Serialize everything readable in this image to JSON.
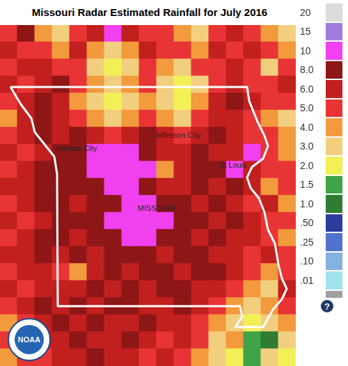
{
  "chart_data": {
    "type": "heatmap",
    "title": "Missouri Radar Estimated Rainfall for July 2016",
    "xlim": [
      -0.5,
      16.5
    ],
    "ylim": [
      -0.5,
      19.5
    ],
    "tick_labels": false,
    "cells": [
      [
        5.5,
        9,
        4.5,
        3.5,
        5.5,
        7,
        12,
        7,
        5.5,
        5.5,
        4.5,
        3.5,
        5.5,
        7,
        5.5,
        4.5,
        3.5
      ],
      [
        7,
        5.5,
        5.5,
        4.5,
        7,
        4.5,
        3.5,
        4.5,
        7,
        5.5,
        5.5,
        4.5,
        7,
        5.5,
        7,
        5.5,
        4.5
      ],
      [
        5.5,
        7,
        7,
        5.5,
        5.5,
        3.5,
        2.5,
        3.5,
        5.5,
        4.5,
        3.5,
        5.5,
        5.5,
        7,
        5.5,
        3.5,
        5.5
      ],
      [
        7,
        5.5,
        7,
        9,
        5.5,
        4.5,
        3.5,
        4.5,
        5.5,
        3.5,
        2.5,
        3.5,
        5.5,
        7,
        5.5,
        5.5,
        7
      ],
      [
        5.5,
        7,
        9,
        7,
        4.5,
        3.5,
        2.5,
        3.5,
        4.5,
        3.5,
        2.5,
        4.5,
        7,
        9,
        7,
        5.5,
        5.5
      ],
      [
        4.5,
        7,
        9,
        7,
        5.5,
        4.5,
        3.5,
        4.5,
        5.5,
        4.5,
        3.5,
        5.5,
        7,
        7,
        5.5,
        4.5,
        3.5
      ],
      [
        5.5,
        7,
        9,
        7,
        9,
        7,
        5.5,
        7,
        9,
        7,
        5.5,
        7,
        9,
        7,
        5.5,
        5.5,
        4.5
      ],
      [
        7,
        5.5,
        7,
        9,
        9,
        12,
        12,
        12,
        9,
        7,
        7,
        9,
        7,
        7,
        12,
        5.5,
        4.5
      ],
      [
        5.5,
        7,
        9,
        9,
        9,
        12,
        12,
        12,
        12,
        4.5,
        7,
        9,
        9,
        12,
        7,
        5.5,
        5.5
      ],
      [
        7,
        7,
        9,
        9,
        9,
        9,
        12,
        12,
        9,
        7,
        7,
        9,
        7,
        9,
        7,
        4.5,
        5.5
      ],
      [
        5.5,
        7,
        9,
        9,
        7,
        9,
        9,
        12,
        12,
        9,
        9,
        7,
        9,
        7,
        5.5,
        7,
        4.5
      ],
      [
        7,
        5.5,
        7,
        9,
        9,
        9,
        12,
        12,
        12,
        12,
        9,
        9,
        7,
        9,
        7,
        5.5,
        5.5
      ],
      [
        5.5,
        7,
        9,
        9,
        7,
        9,
        9,
        12,
        12,
        9,
        9,
        7,
        9,
        7,
        7,
        5.5,
        4.5
      ],
      [
        7,
        7,
        9,
        7,
        9,
        7,
        9,
        9,
        9,
        7,
        9,
        9,
        7,
        7,
        5.5,
        7,
        5.5
      ],
      [
        5.5,
        7,
        7,
        5.5,
        4.5,
        7,
        9,
        7,
        9,
        9,
        7,
        9,
        9,
        7,
        5.5,
        4.5,
        5.5
      ],
      [
        7,
        5.5,
        7,
        7,
        7,
        9,
        7,
        9,
        7,
        9,
        9,
        7,
        7,
        5.5,
        4.5,
        3.5,
        7
      ],
      [
        5.5,
        7,
        9,
        7,
        9,
        7,
        9,
        9,
        7,
        7,
        9,
        7,
        5.5,
        4.5,
        3.5,
        4.5,
        5.5
      ],
      [
        4.5,
        5.5,
        7,
        9,
        7,
        9,
        7,
        7,
        9,
        7,
        7,
        5.5,
        4.5,
        3.5,
        2.5,
        3.5,
        4.5
      ],
      [
        5.5,
        4.5,
        7,
        7,
        9,
        7,
        7,
        9,
        7,
        5.5,
        7,
        5.5,
        3.5,
        4.5,
        1.7,
        1.2,
        3.5
      ],
      [
        4.5,
        5.5,
        5.5,
        7,
        7,
        9,
        7,
        7,
        5.5,
        7,
        5.5,
        4.5,
        3.5,
        2.5,
        1.7,
        3.5,
        2.5
      ]
    ],
    "colorbar": {
      "ticks": [
        {
          "value": 0.01,
          "label": ".01"
        },
        {
          "value": 0.1,
          "label": ".10"
        },
        {
          "value": 0.25,
          "label": ".25"
        },
        {
          "value": 0.5,
          "label": ".50"
        },
        {
          "value": 1,
          "label": "1.0"
        },
        1.5,
        {
          "value": 2,
          "label": "2.0"
        },
        {
          "value": 3,
          "label": "3.0"
        },
        {
          "value": 4,
          "label": "4.0"
        },
        {
          "value": 5,
          "label": "5.0"
        },
        {
          "value": 6,
          "label": "6.0"
        },
        {
          "value": 8,
          "label": "8.0"
        },
        10,
        15,
        20
      ],
      "colors": [
        "#a0a0a0",
        "#9fe3ef",
        "#83b1e0",
        "#4f73cf",
        "#2b3b9e",
        "#2e7d32",
        "#3fa447",
        "#f3f056",
        "#f2cf7e",
        "#f29a3c",
        "#e83434",
        "#c21f1f",
        "#8e1616",
        "#f040f0",
        "#a07cdf",
        "#dcdcdc"
      ]
    },
    "annotations": [
      {
        "text": "Kansas City",
        "x": 3.9,
        "y": 6.77
      },
      {
        "text": "Jefferson City",
        "x": 9.7,
        "y": 6.0
      },
      {
        "text": "St Louis",
        "x": 12.9,
        "y": 7.74
      },
      {
        "text": "MISSOURI",
        "x": 8.5,
        "y": 10.28
      }
    ],
    "logo": "NOAA",
    "help": "?"
  }
}
